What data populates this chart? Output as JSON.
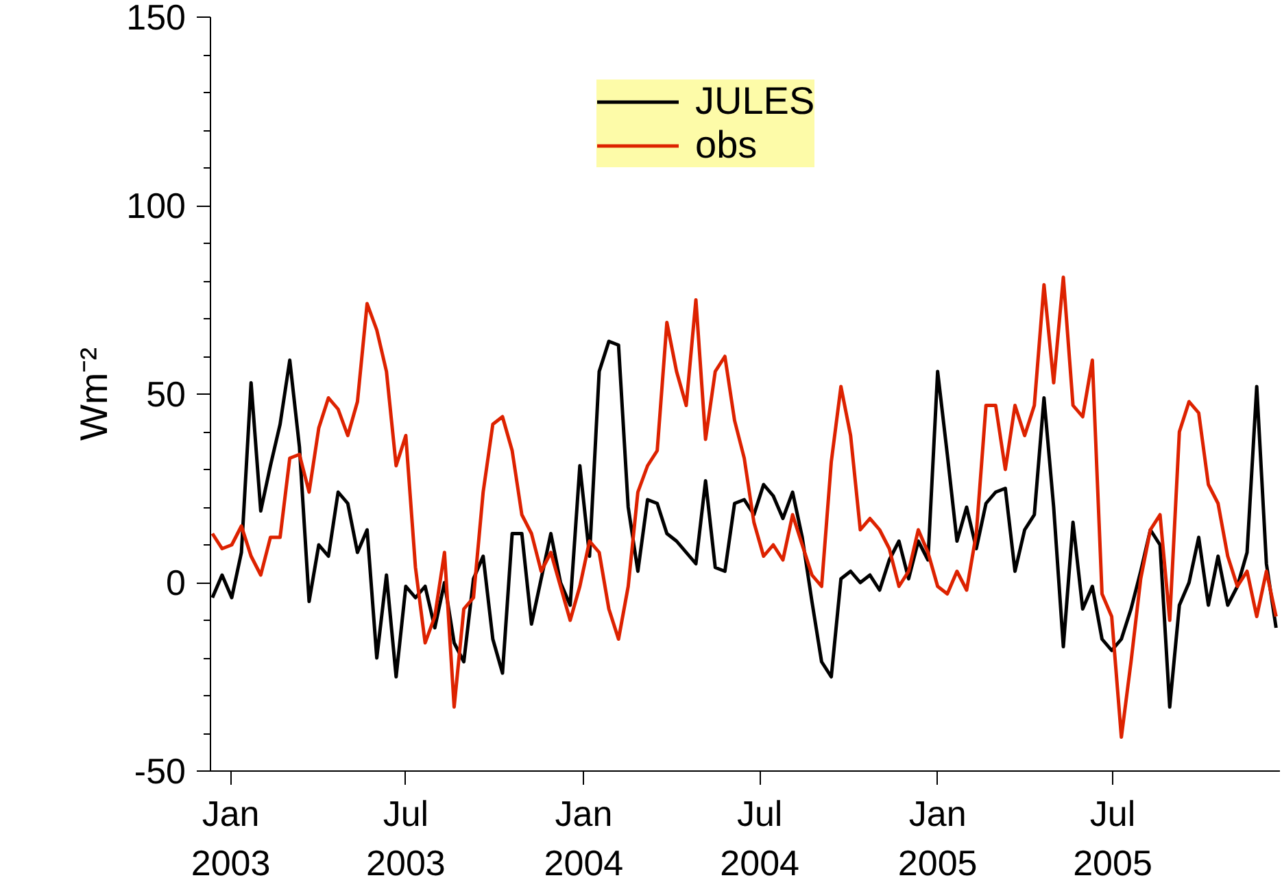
{
  "chart_data": {
    "type": "line",
    "ylabel": "Wm⁻²",
    "x": [
      "2002-12-13",
      "2002-12-23",
      "2003-01-02",
      "2003-01-12",
      "2003-01-22",
      "2003-02-01",
      "2003-02-11",
      "2003-02-21",
      "2003-03-03",
      "2003-03-13",
      "2003-03-23",
      "2003-04-02",
      "2003-04-12",
      "2003-04-22",
      "2003-05-02",
      "2003-05-12",
      "2003-05-22",
      "2003-06-01",
      "2003-06-11",
      "2003-06-21",
      "2003-07-01",
      "2003-07-11",
      "2003-07-21",
      "2003-07-31",
      "2003-08-10",
      "2003-08-20",
      "2003-08-30",
      "2003-09-09",
      "2003-09-19",
      "2003-09-29",
      "2003-10-09",
      "2003-10-19",
      "2003-10-29",
      "2003-11-08",
      "2003-11-18",
      "2003-11-28",
      "2003-12-08",
      "2003-12-18",
      "2003-12-28",
      "2004-01-07",
      "2004-01-17",
      "2004-01-27",
      "2004-02-06",
      "2004-02-16",
      "2004-02-26",
      "2004-03-07",
      "2004-03-17",
      "2004-03-27",
      "2004-04-06",
      "2004-04-16",
      "2004-04-26",
      "2004-05-06",
      "2004-05-16",
      "2004-05-26",
      "2004-06-05",
      "2004-06-15",
      "2004-06-25",
      "2004-07-05",
      "2004-07-15",
      "2004-07-25",
      "2004-08-04",
      "2004-08-14",
      "2004-08-24",
      "2004-09-03",
      "2004-09-13",
      "2004-09-23",
      "2004-10-03",
      "2004-10-13",
      "2004-10-23",
      "2004-11-02",
      "2004-11-12",
      "2004-11-22",
      "2004-12-02",
      "2004-12-12",
      "2004-12-22",
      "2005-01-01",
      "2005-01-11",
      "2005-01-21",
      "2005-01-31",
      "2005-02-10",
      "2005-02-20",
      "2005-03-02",
      "2005-03-12",
      "2005-03-22",
      "2005-04-01",
      "2005-04-11",
      "2005-04-21",
      "2005-05-01",
      "2005-05-11",
      "2005-05-21",
      "2005-05-31",
      "2005-06-10",
      "2005-06-20",
      "2005-06-30",
      "2005-07-10",
      "2005-07-20",
      "2005-07-30",
      "2005-08-09",
      "2005-08-19",
      "2005-08-29",
      "2005-09-08",
      "2005-09-18",
      "2005-09-28",
      "2005-10-08",
      "2005-10-18",
      "2005-10-28",
      "2005-11-07",
      "2005-11-17",
      "2005-11-27",
      "2005-12-07",
      "2005-12-17"
    ],
    "series": [
      {
        "name": "JULES",
        "color": "#000000",
        "values": [
          -4,
          2,
          -4,
          8,
          53,
          19,
          31,
          42,
          59,
          36,
          -5,
          10,
          7,
          24,
          21,
          8,
          14,
          -20,
          2,
          -25,
          -1,
          -4,
          -1,
          -12,
          0,
          -16,
          -21,
          1,
          7,
          -15,
          -24,
          13,
          13,
          -11,
          1,
          13,
          0,
          -6,
          31,
          7,
          56,
          64,
          63,
          20,
          3,
          22,
          21,
          13,
          11,
          8,
          5,
          27,
          4,
          3,
          21,
          22,
          18,
          26,
          23,
          17,
          24,
          12,
          -5,
          -21,
          -25,
          1,
          3,
          0,
          2,
          -2,
          6,
          11,
          1,
          11,
          6,
          56,
          34,
          11,
          20,
          9,
          21,
          24,
          25,
          3,
          14,
          18,
          49,
          20,
          -17,
          16,
          -7,
          -1,
          -15,
          -18,
          -15,
          -7,
          3,
          14,
          10,
          -33,
          -6,
          0,
          12,
          -6,
          7,
          -6,
          -1,
          8,
          52,
          5,
          -12
        ]
      },
      {
        "name": "obs",
        "color": "#dd2200",
        "values": [
          13,
          9,
          10,
          15,
          7,
          2,
          12,
          12,
          33,
          34,
          24,
          41,
          49,
          46,
          39,
          48,
          74,
          67,
          56,
          31,
          39,
          4,
          -16,
          -9,
          8,
          -33,
          -7,
          -4,
          24,
          42,
          44,
          35,
          18,
          13,
          3,
          8,
          -1,
          -10,
          -1,
          11,
          8,
          -7,
          -15,
          -1,
          24,
          31,
          35,
          69,
          56,
          47,
          75,
          38,
          56,
          60,
          43,
          33,
          16,
          7,
          10,
          6,
          18,
          10,
          2,
          -1,
          32,
          52,
          39,
          14,
          17,
          14,
          9,
          -1,
          3,
          14,
          8,
          -1,
          -3,
          3,
          -2,
          13,
          47,
          47,
          30,
          47,
          39,
          47,
          79,
          53,
          81,
          47,
          44,
          59,
          -3,
          -9,
          -41,
          -21,
          1,
          14,
          18,
          -10,
          40,
          48,
          45,
          26,
          21,
          7,
          -1,
          3,
          -9,
          3,
          -9
        ]
      }
    ],
    "xlim": [
      "2002-12-11",
      "2005-12-21"
    ],
    "xticks": [
      {
        "value": "2003-01-01",
        "label": "Jan\n2003"
      },
      {
        "value": "2003-07-01",
        "label": "Jul\n2003"
      },
      {
        "value": "2004-01-01",
        "label": "Jan\n2004"
      },
      {
        "value": "2004-07-01",
        "label": "Jul\n2004"
      },
      {
        "value": "2005-01-01",
        "label": "Jan\n2005"
      },
      {
        "value": "2005-07-01",
        "label": "Jul\n2005"
      }
    ],
    "ylim": [
      -50,
      150
    ],
    "yticks": [
      -50,
      {
        "value": -40,
        "label": null
      },
      {
        "value": -30,
        "label": null
      },
      {
        "value": -20,
        "label": null
      },
      {
        "value": -10,
        "label": null
      },
      0,
      {
        "value": 10,
        "label": null
      },
      {
        "value": 20,
        "label": null
      },
      {
        "value": 30,
        "label": null
      },
      {
        "value": 40,
        "label": null
      },
      50,
      {
        "value": 60,
        "label": null
      },
      {
        "value": 70,
        "label": null
      },
      {
        "value": 80,
        "label": null
      },
      {
        "value": 90,
        "label": null
      },
      100,
      {
        "value": 110,
        "label": null
      },
      {
        "value": 120,
        "label": null
      },
      {
        "value": 130,
        "label": null
      },
      {
        "value": 140,
        "label": null
      },
      150
    ],
    "grid": false,
    "legend": "top right",
    "line_style": "solid"
  }
}
